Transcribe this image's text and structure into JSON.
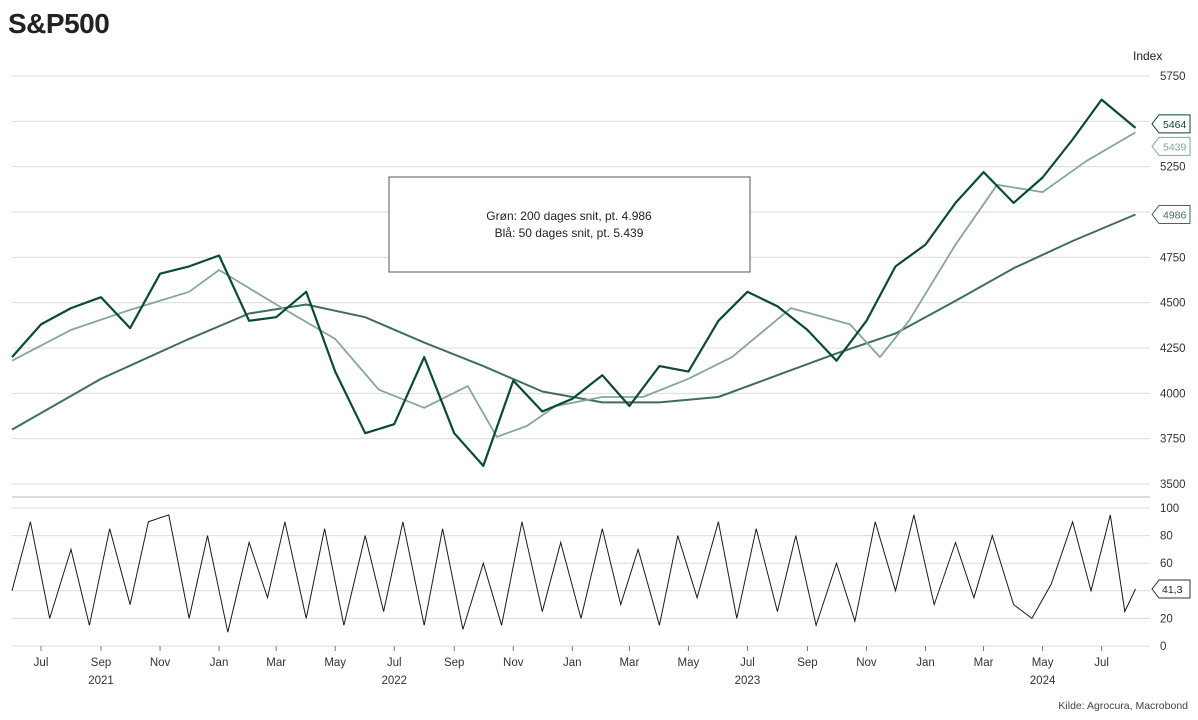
{
  "header": {
    "title": "S&P500"
  },
  "source": "Kilde: Agrocura, Macrobond",
  "colors": {
    "price": "#0b4a35",
    "ma200": "#3f6f5a",
    "ma50": "#86a69b",
    "oscillator": "#1a1a1a",
    "grid": "#dcdcdc"
  },
  "chart_data": [
    {
      "type": "line",
      "title": "",
      "unit_label": "Index",
      "ylim": [
        3500,
        5750
      ],
      "yticks": [
        3500,
        3750,
        4000,
        4250,
        4500,
        4750,
        5000,
        5250,
        5500,
        5750
      ],
      "grid": true,
      "annotation": {
        "line1": "Grøn: 200 dages snit, pt. 4.986",
        "line2": "Blå: 50 dages snit, pt. 5.439"
      },
      "end_labels": [
        "5464",
        "5439",
        "4986"
      ],
      "series": [
        {
          "key": "price",
          "x": [
            "2021-06-01",
            "2021-07-01",
            "2021-08-01",
            "2021-09-01",
            "2021-10-01",
            "2021-11-01",
            "2021-12-01",
            "2022-01-01",
            "2022-02-01",
            "2022-03-01",
            "2022-04-01",
            "2022-05-01",
            "2022-06-01",
            "2022-07-01",
            "2022-08-01",
            "2022-09-01",
            "2022-10-01",
            "2022-11-01",
            "2022-12-01",
            "2023-01-01",
            "2023-02-01",
            "2023-03-01",
            "2023-04-01",
            "2023-05-01",
            "2023-06-01",
            "2023-07-01",
            "2023-08-01",
            "2023-09-01",
            "2023-10-01",
            "2023-11-01",
            "2023-12-01",
            "2024-01-01",
            "2024-02-01",
            "2024-03-01",
            "2024-04-01",
            "2024-05-01",
            "2024-06-01",
            "2024-07-01",
            "2024-08-05"
          ],
          "values": [
            4200,
            4380,
            4470,
            4530,
            4360,
            4660,
            4700,
            4760,
            4400,
            4420,
            4560,
            4120,
            3780,
            3830,
            4200,
            3780,
            3600,
            4070,
            3900,
            3970,
            4100,
            3930,
            4150,
            4120,
            4400,
            4560,
            4480,
            4350,
            4180,
            4400,
            4700,
            4820,
            5050,
            5220,
            5050,
            5190,
            5400,
            5620,
            5464
          ]
        },
        {
          "key": "ma50",
          "x": [
            "2021-06-01",
            "2021-08-01",
            "2021-10-01",
            "2021-12-01",
            "2022-01-01",
            "2022-03-01",
            "2022-05-01",
            "2022-06-15",
            "2022-08-01",
            "2022-09-15",
            "2022-10-15",
            "2022-11-15",
            "2022-12-15",
            "2023-02-01",
            "2023-03-15",
            "2023-05-01",
            "2023-06-15",
            "2023-08-15",
            "2023-10-15",
            "2023-11-15",
            "2023-12-15",
            "2024-02-01",
            "2024-03-15",
            "2024-05-01",
            "2024-06-15",
            "2024-08-05"
          ],
          "values": [
            4180,
            4350,
            4460,
            4560,
            4680,
            4490,
            4300,
            4020,
            3920,
            4040,
            3760,
            3820,
            3930,
            3980,
            3980,
            4080,
            4200,
            4470,
            4380,
            4200,
            4400,
            4820,
            5150,
            5110,
            5280,
            5439
          ]
        },
        {
          "key": "ma200",
          "x": [
            "2021-06-01",
            "2021-09-01",
            "2021-12-01",
            "2022-02-01",
            "2022-04-01",
            "2022-06-01",
            "2022-08-01",
            "2022-10-01",
            "2022-12-01",
            "2023-02-01",
            "2023-04-01",
            "2023-06-01",
            "2023-08-01",
            "2023-10-01",
            "2023-12-01",
            "2024-02-01",
            "2024-04-01",
            "2024-06-01",
            "2024-08-05"
          ],
          "values": [
            3800,
            4080,
            4300,
            4440,
            4490,
            4420,
            4280,
            4150,
            4010,
            3950,
            3950,
            3980,
            4100,
            4220,
            4330,
            4510,
            4690,
            4840,
            4986
          ]
        }
      ]
    },
    {
      "type": "line",
      "title": "",
      "ylim": [
        0,
        100
      ],
      "yticks": [
        0,
        20,
        40,
        60,
        80,
        100
      ],
      "grid": true,
      "end_label": "41,3",
      "series": [
        {
          "key": "oscillator",
          "x": [
            "2021-06-01",
            "2021-06-20",
            "2021-07-10",
            "2021-08-01",
            "2021-08-20",
            "2021-09-10",
            "2021-10-01",
            "2021-10-20",
            "2021-11-10",
            "2021-12-01",
            "2021-12-20",
            "2022-01-10",
            "2022-02-01",
            "2022-02-20",
            "2022-03-10",
            "2022-04-01",
            "2022-04-20",
            "2022-05-10",
            "2022-06-01",
            "2022-06-20",
            "2022-07-10",
            "2022-08-01",
            "2022-08-20",
            "2022-09-10",
            "2022-10-01",
            "2022-10-20",
            "2022-11-10",
            "2022-12-01",
            "2022-12-20",
            "2023-01-10",
            "2023-02-01",
            "2023-02-20",
            "2023-03-10",
            "2023-04-01",
            "2023-04-20",
            "2023-05-10",
            "2023-06-01",
            "2023-06-20",
            "2023-07-10",
            "2023-08-01",
            "2023-08-20",
            "2023-09-10",
            "2023-10-01",
            "2023-10-20",
            "2023-11-10",
            "2023-12-01",
            "2023-12-20",
            "2024-01-10",
            "2024-02-01",
            "2024-02-20",
            "2024-03-10",
            "2024-04-01",
            "2024-04-20",
            "2024-05-10",
            "2024-06-01",
            "2024-06-20",
            "2024-07-10",
            "2024-07-25",
            "2024-08-05"
          ],
          "values": [
            40,
            90,
            20,
            70,
            15,
            85,
            30,
            90,
            95,
            20,
            80,
            10,
            75,
            35,
            90,
            20,
            85,
            15,
            80,
            25,
            90,
            15,
            85,
            12,
            60,
            15,
            90,
            25,
            75,
            20,
            85,
            30,
            70,
            15,
            80,
            35,
            90,
            20,
            85,
            25,
            80,
            15,
            60,
            18,
            90,
            40,
            95,
            30,
            75,
            35,
            80,
            30,
            20,
            45,
            90,
            40,
            95,
            25,
            41.3
          ]
        }
      ]
    }
  ],
  "x_axis": {
    "months": [
      {
        "label": "Jul",
        "date": "2021-07-01"
      },
      {
        "label": "Sep",
        "date": "2021-09-01"
      },
      {
        "label": "Nov",
        "date": "2021-11-01"
      },
      {
        "label": "Jan",
        "date": "2022-01-01"
      },
      {
        "label": "Mar",
        "date": "2022-03-01"
      },
      {
        "label": "May",
        "date": "2022-05-01"
      },
      {
        "label": "Jul",
        "date": "2022-07-01"
      },
      {
        "label": "Sep",
        "date": "2022-09-01"
      },
      {
        "label": "Nov",
        "date": "2022-11-01"
      },
      {
        "label": "Jan",
        "date": "2023-01-01"
      },
      {
        "label": "Mar",
        "date": "2023-03-01"
      },
      {
        "label": "May",
        "date": "2023-05-01"
      },
      {
        "label": "Jul",
        "date": "2023-07-01"
      },
      {
        "label": "Sep",
        "date": "2023-09-01"
      },
      {
        "label": "Nov",
        "date": "2023-11-01"
      },
      {
        "label": "Jan",
        "date": "2024-01-01"
      },
      {
        "label": "Mar",
        "date": "2024-03-01"
      },
      {
        "label": "May",
        "date": "2024-05-01"
      },
      {
        "label": "Jul",
        "date": "2024-07-01"
      }
    ],
    "years": [
      {
        "label": "2021",
        "date": "2021-09-01"
      },
      {
        "label": "2022",
        "date": "2022-07-01"
      },
      {
        "label": "2023",
        "date": "2023-07-01"
      },
      {
        "label": "2024",
        "date": "2024-05-01"
      }
    ]
  }
}
